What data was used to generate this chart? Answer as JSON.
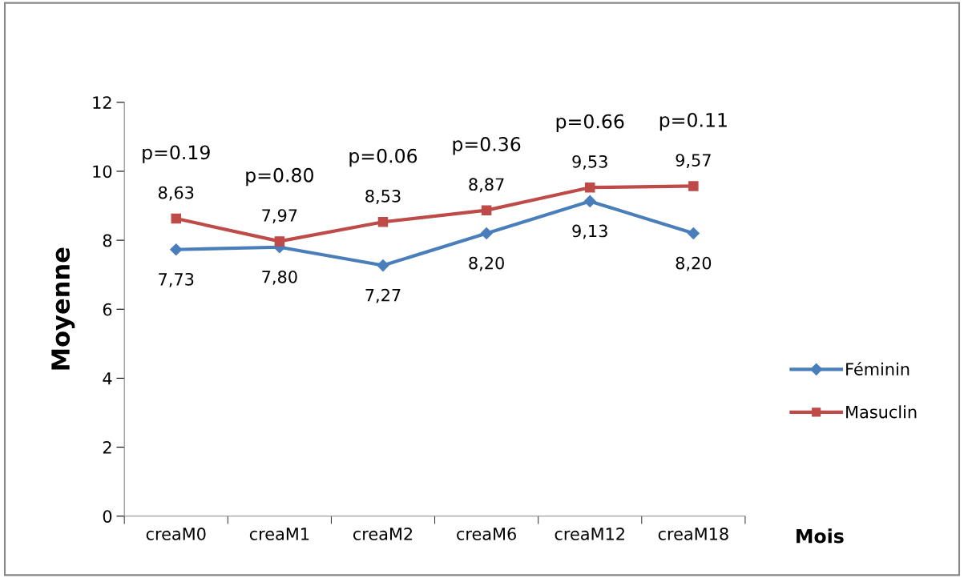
{
  "chart_data": {
    "type": "line",
    "xlabel": "Mois",
    "ylabel": "Moyenne",
    "categories": [
      "creaM0",
      "creaM1",
      "creaM2",
      "creaM6",
      "creaM12",
      "creaM18"
    ],
    "series": [
      {
        "name": "Féminin",
        "color": "#4a7ebb",
        "marker": "diamond",
        "values": [
          7.73,
          7.8,
          7.27,
          8.2,
          9.13,
          8.2
        ],
        "value_labels": [
          "7,73",
          "7,80",
          "7,27",
          "8,20",
          "9,13",
          "8,20"
        ]
      },
      {
        "name": "Masuclin",
        "color": "#be4b48",
        "marker": "square",
        "values": [
          8.63,
          7.97,
          8.53,
          8.87,
          9.53,
          9.57
        ],
        "value_labels": [
          "8,63",
          "7,97",
          "8,53",
          "8,87",
          "9,53",
          "9,57"
        ]
      }
    ],
    "annotations": [
      "p=0.19",
      "p=0.80",
      "p=0.06",
      "p=0.36",
      "p=0.66",
      "p=0.11"
    ],
    "ylim": [
      0,
      12
    ],
    "yticks": [
      0,
      2,
      4,
      6,
      8,
      10,
      12
    ],
    "grid": false,
    "legend": "right",
    "line_style": "solid"
  }
}
